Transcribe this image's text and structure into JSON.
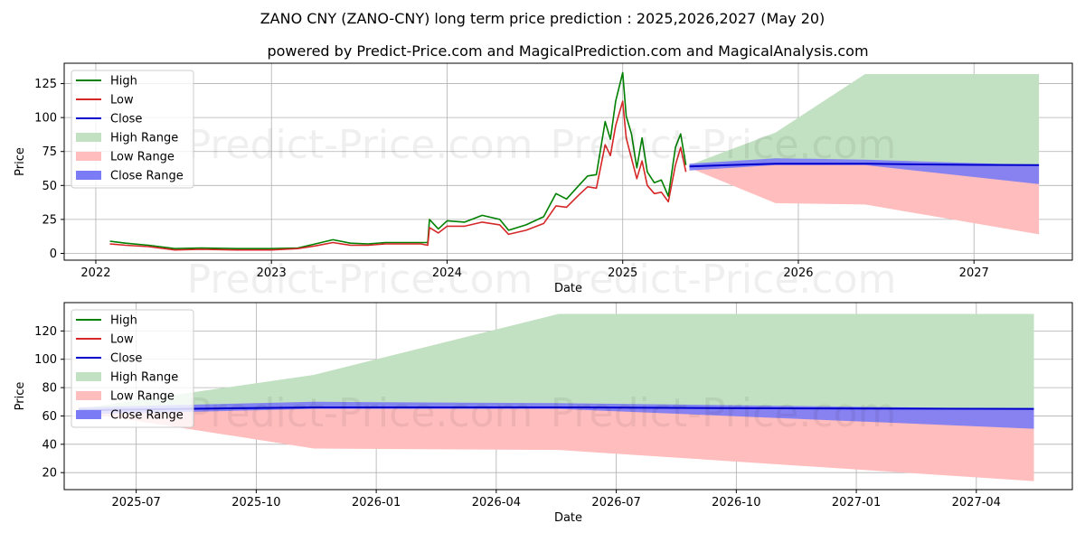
{
  "title": "ZANO CNY (ZANO-CNY) long term price prediction : 2025,2026,2027 (May 20)",
  "subtitle": "powered by Predict-Price.com and MagicalPrediction.com and MagicalAnalysis.com",
  "watermark": "Predict-Price.com",
  "colors": {
    "high": "#008000",
    "low": "#d62728",
    "close": "#0000cc",
    "high_range": "#c2e0c2",
    "low_range": "#ffbdbd",
    "close_range": "#7b7bf5"
  },
  "chart_data": [
    {
      "type": "line",
      "name": "top",
      "xlabel": "Date",
      "ylabel": "Price",
      "xlim": [
        2021.82,
        2027.56
      ],
      "ylim": [
        -5,
        140
      ],
      "xticks": [
        2022,
        2023,
        2024,
        2025,
        2026,
        2027
      ],
      "xtick_labels": [
        "2022",
        "2023",
        "2024",
        "2025",
        "2026",
        "2027"
      ],
      "yticks": [
        0,
        25,
        50,
        75,
        100,
        125
      ],
      "ytick_labels": [
        "0",
        "25",
        "50",
        "75",
        "100",
        "125"
      ],
      "grid": true,
      "legend": [
        "High",
        "Low",
        "Close",
        "High Range",
        "Low Range",
        "Close Range"
      ],
      "legend_position": "top-left",
      "series": [
        {
          "name": "High",
          "x": [
            2022.08,
            2022.17,
            2022.3,
            2022.45,
            2022.6,
            2022.8,
            2023.0,
            2023.15,
            2023.25,
            2023.35,
            2023.45,
            2023.55,
            2023.65,
            2023.75,
            2023.85,
            2023.89,
            2023.9,
            2023.95,
            2024.0,
            2024.1,
            2024.2,
            2024.3,
            2024.35,
            2024.45,
            2024.55,
            2024.62,
            2024.68,
            2024.75,
            2024.8,
            2024.85,
            2024.9,
            2024.93,
            2024.96,
            2025.0,
            2025.02,
            2025.05,
            2025.08,
            2025.11,
            2025.14,
            2025.18,
            2025.22,
            2025.26,
            2025.3,
            2025.33,
            2025.36
          ],
          "values": [
            9,
            7.5,
            6,
            3.5,
            4,
            3.5,
            3.5,
            4,
            7,
            10,
            7.5,
            7,
            8,
            8,
            8,
            8,
            25,
            18,
            24,
            23,
            28,
            25,
            17,
            21,
            27,
            44,
            40,
            50,
            57,
            58,
            97,
            84,
            112,
            133,
            101,
            88,
            63,
            85,
            60,
            52,
            54,
            42,
            78,
            88,
            65
          ]
        },
        {
          "name": "Low",
          "x": [
            2022.08,
            2022.17,
            2022.3,
            2022.45,
            2022.6,
            2022.8,
            2023.0,
            2023.15,
            2023.25,
            2023.35,
            2023.45,
            2023.55,
            2023.65,
            2023.75,
            2023.85,
            2023.89,
            2023.9,
            2023.95,
            2024.0,
            2024.1,
            2024.2,
            2024.3,
            2024.35,
            2024.45,
            2024.55,
            2024.62,
            2024.68,
            2024.75,
            2024.8,
            2024.85,
            2024.9,
            2024.93,
            2024.96,
            2025.0,
            2025.02,
            2025.05,
            2025.08,
            2025.11,
            2025.14,
            2025.18,
            2025.22,
            2025.26,
            2025.3,
            2025.33,
            2025.36
          ],
          "values": [
            7,
            6,
            5,
            2.5,
            3,
            2.5,
            2.5,
            3.5,
            5.5,
            8,
            6,
            6,
            7,
            7,
            7,
            6,
            19,
            15,
            20,
            20,
            23,
            21,
            14,
            17,
            22,
            35,
            34,
            43,
            49,
            48,
            80,
            72,
            94,
            112,
            85,
            70,
            55,
            68,
            50,
            44,
            45,
            38,
            65,
            78,
            60
          ]
        },
        {
          "name": "Close",
          "x": [
            2025.38,
            2025.6,
            2025.87,
            2026.1,
            2026.4,
            2026.7,
            2027.0,
            2027.37
          ],
          "values": [
            64,
            65,
            66,
            66,
            66,
            65.5,
            65.2,
            65
          ]
        }
      ],
      "ranges": [
        {
          "name": "High Range",
          "x": [
            2025.38,
            2025.87,
            2026.38,
            2027.37
          ],
          "upper": [
            65,
            89,
            132,
            132
          ],
          "lower": [
            64,
            66,
            66,
            65
          ]
        },
        {
          "name": "Low Range",
          "x": [
            2025.38,
            2025.87,
            2026.38,
            2027.37
          ],
          "upper": [
            64,
            66,
            66,
            65
          ],
          "lower": [
            63,
            37,
            36,
            14
          ]
        },
        {
          "name": "Close Range",
          "x": [
            2025.38,
            2025.87,
            2026.38,
            2027.37
          ],
          "upper": [
            66,
            70,
            69,
            65
          ],
          "lower": [
            61,
            65,
            65,
            51
          ]
        }
      ]
    },
    {
      "type": "line",
      "name": "bottom",
      "xlabel": "Date",
      "ylabel": "Price",
      "xlim": [
        2025.35,
        2027.45
      ],
      "ylim": [
        8,
        140
      ],
      "xticks": [
        2025.5,
        2025.75,
        2026.0,
        2026.25,
        2026.5,
        2026.75,
        2027.0,
        2027.25
      ],
      "xtick_labels": [
        "2025-07",
        "2025-10",
        "2026-01",
        "2026-04",
        "2026-07",
        "2026-10",
        "2027-01",
        "2027-04"
      ],
      "yticks": [
        20,
        40,
        60,
        80,
        100,
        120
      ],
      "ytick_labels": [
        "20",
        "40",
        "60",
        "80",
        "100",
        "120"
      ],
      "grid": true,
      "legend": [
        "High",
        "Low",
        "Close",
        "High Range",
        "Low Range",
        "Close Range"
      ],
      "legend_position": "top-left",
      "series": [
        {
          "name": "Close",
          "x": [
            2025.38,
            2025.6,
            2025.87,
            2026.1,
            2026.4,
            2026.7,
            2027.0,
            2027.37
          ],
          "values": [
            64,
            65,
            66,
            66,
            66,
            65.5,
            65.2,
            65
          ]
        }
      ],
      "ranges": [
        {
          "name": "High Range",
          "x": [
            2025.38,
            2025.87,
            2026.38,
            2027.37
          ],
          "upper": [
            65,
            89,
            132,
            132
          ],
          "lower": [
            64,
            66,
            66,
            65
          ]
        },
        {
          "name": "Low Range",
          "x": [
            2025.38,
            2025.87,
            2026.38,
            2027.37
          ],
          "upper": [
            64,
            66,
            66,
            65
          ],
          "lower": [
            63,
            37,
            36,
            14
          ]
        },
        {
          "name": "Close Range",
          "x": [
            2025.38,
            2025.87,
            2026.38,
            2027.37
          ],
          "upper": [
            66,
            70,
            69,
            65
          ],
          "lower": [
            61,
            65,
            65,
            51
          ]
        }
      ]
    }
  ]
}
